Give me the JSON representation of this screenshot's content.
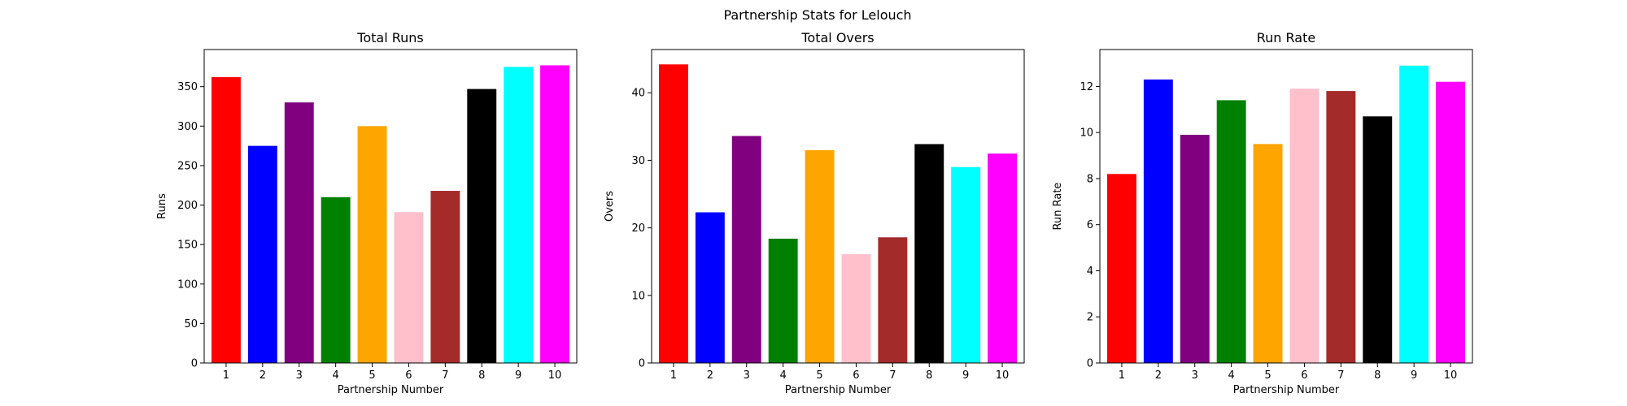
{
  "figure": {
    "suptitle": "Partnership Stats for Lelouch"
  },
  "chart_data": [
    {
      "type": "bar",
      "title": "Total Runs",
      "xlabel": "Partnership Number",
      "ylabel": "Runs",
      "categories": [
        "1",
        "2",
        "3",
        "4",
        "5",
        "6",
        "7",
        "8",
        "9",
        "10"
      ],
      "values": [
        362,
        275,
        330,
        210,
        300,
        191,
        218,
        347,
        375,
        377
      ],
      "colors": [
        "#ff0000",
        "#0000ff",
        "#800080",
        "#008000",
        "#ffa500",
        "#ffc0cb",
        "#a52a2a",
        "#000000",
        "#00ffff",
        "#ff00ff"
      ],
      "ylim": [
        0,
        397
      ],
      "yticks": [
        0,
        50,
        100,
        150,
        200,
        250,
        300,
        350
      ],
      "grid": false
    },
    {
      "type": "bar",
      "title": "Total Overs",
      "xlabel": "Partnership Number",
      "ylabel": "Overs",
      "categories": [
        "1",
        "2",
        "3",
        "4",
        "5",
        "6",
        "7",
        "8",
        "9",
        "10"
      ],
      "values": [
        44.2,
        22.3,
        33.6,
        18.4,
        31.5,
        16.1,
        18.6,
        32.4,
        29.0,
        31.0
      ],
      "colors": [
        "#ff0000",
        "#0000ff",
        "#800080",
        "#008000",
        "#ffa500",
        "#ffc0cb",
        "#a52a2a",
        "#000000",
        "#00ffff",
        "#ff00ff"
      ],
      "ylim": [
        0,
        46.4
      ],
      "yticks": [
        0,
        10,
        20,
        30,
        40
      ],
      "grid": false
    },
    {
      "type": "bar",
      "title": "Run Rate",
      "xlabel": "Partnership Number",
      "ylabel": "Run Rate",
      "categories": [
        "1",
        "2",
        "3",
        "4",
        "5",
        "6",
        "7",
        "8",
        "9",
        "10"
      ],
      "values": [
        8.2,
        12.3,
        9.9,
        11.4,
        9.5,
        11.9,
        11.8,
        10.7,
        12.9,
        12.2
      ],
      "colors": [
        "#ff0000",
        "#0000ff",
        "#800080",
        "#008000",
        "#ffa500",
        "#ffc0cb",
        "#a52a2a",
        "#000000",
        "#00ffff",
        "#ff00ff"
      ],
      "ylim": [
        0,
        13.6
      ],
      "yticks": [
        0,
        2,
        4,
        6,
        8,
        10,
        12
      ],
      "grid": false
    }
  ]
}
